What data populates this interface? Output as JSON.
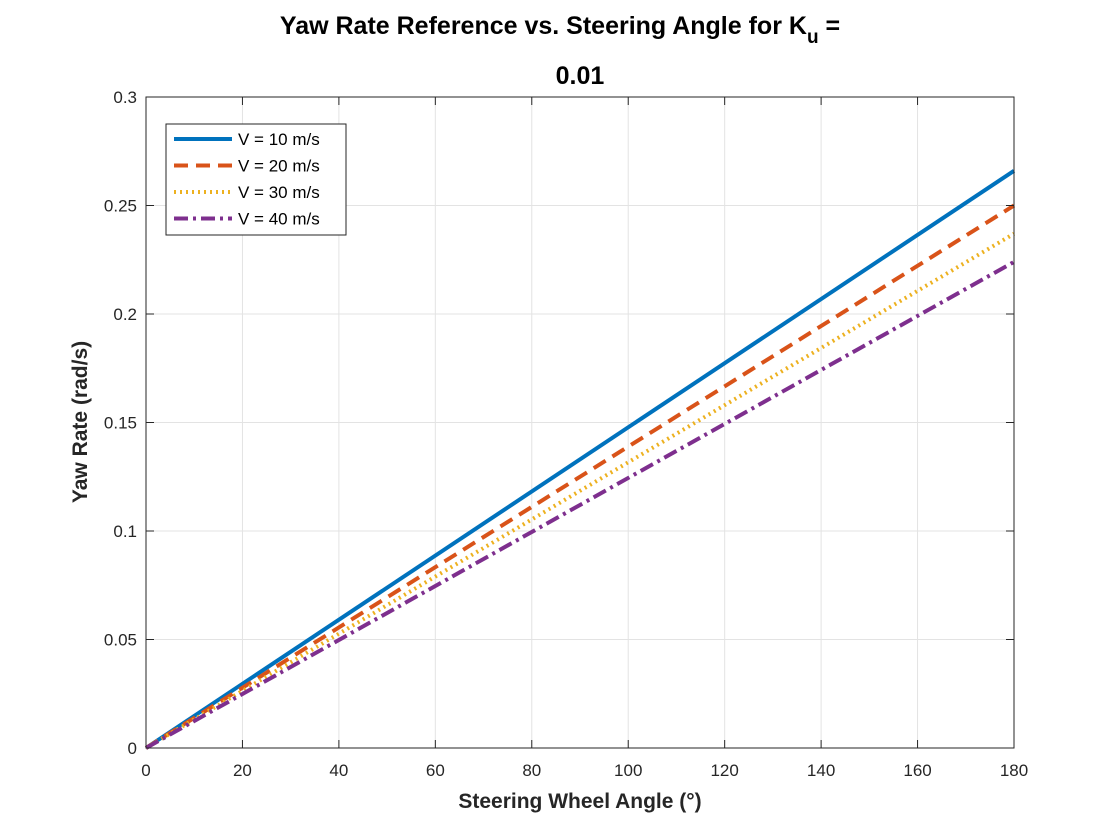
{
  "chart_data": {
    "type": "line",
    "title_line1": "Yaw Rate Reference vs. Steering Angle for K",
    "title_subscript": "u",
    "title_suffix": " =",
    "title_line2": "0.01",
    "xlabel": "Steering Wheel Angle (°)",
    "ylabel": "Yaw Rate (rad/s)",
    "xlim": [
      0,
      180
    ],
    "ylim": [
      0,
      0.3
    ],
    "xticks": [
      0,
      20,
      40,
      60,
      80,
      100,
      120,
      140,
      160,
      180
    ],
    "yticks": [
      0,
      0.05,
      0.1,
      0.15,
      0.2,
      0.25,
      0.3
    ],
    "xtick_labels": [
      "0",
      "20",
      "40",
      "60",
      "80",
      "100",
      "120",
      "140",
      "160",
      "180"
    ],
    "ytick_labels": [
      "0",
      "0.05",
      "0.1",
      "0.15",
      "0.2",
      "0.25",
      "0.3"
    ],
    "grid": true,
    "legend_position": "top-left",
    "x": [
      0,
      180
    ],
    "series": [
      {
        "name": "V = 10 m/s",
        "values": [
          0,
          0.266
        ],
        "color": "#0072BD",
        "style": "solid"
      },
      {
        "name": "V = 20 m/s",
        "values": [
          0,
          0.25
        ],
        "color": "#D95319",
        "style": "dashed"
      },
      {
        "name": "V = 30 m/s",
        "values": [
          0,
          0.237
        ],
        "color": "#EDB120",
        "style": "dotted"
      },
      {
        "name": "V = 40 m/s",
        "values": [
          0,
          0.224
        ],
        "color": "#7E2F8E",
        "style": "dashdot"
      }
    ]
  }
}
